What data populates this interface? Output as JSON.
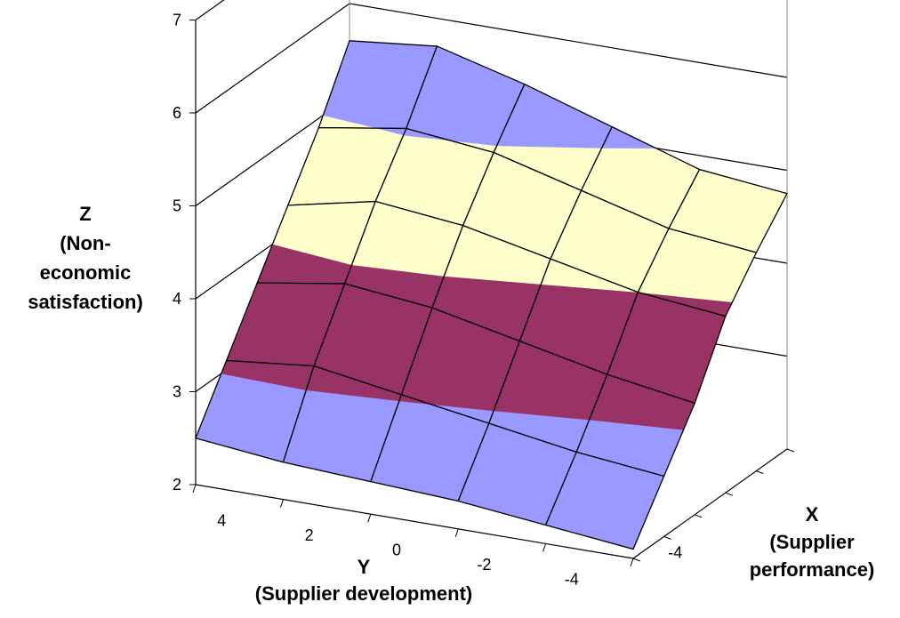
{
  "chart_data": {
    "type": "surface",
    "axes": {
      "z": {
        "title_lines": [
          "Z",
          "(Non-",
          "economic",
          "satisfaction)"
        ],
        "range": [
          2,
          7
        ],
        "ticks": [
          "2",
          "3",
          "4",
          "5",
          "6",
          "7"
        ]
      },
      "y": {
        "title_lines": [
          "Y",
          "(Supplier development)"
        ],
        "ticks": [
          "4",
          "2",
          "0",
          "-2",
          "-4"
        ]
      },
      "x": {
        "title_lines": [
          "X",
          "(Supplier",
          "performance)"
        ],
        "ticks": [
          "-4"
        ]
      }
    },
    "y_values": [
      5,
      3,
      1,
      -1,
      -3,
      -5
    ],
    "x_values": [
      -5,
      -3,
      -1,
      1,
      3,
      5
    ],
    "z_values": [
      [
        2.5,
        3.1,
        3.7,
        4.3,
        4.9,
        5.6
      ],
      [
        2.4,
        3.2,
        3.85,
        4.5,
        5.05,
        5.7
      ],
      [
        2.35,
        3.05,
        3.75,
        4.4,
        4.95,
        5.45
      ],
      [
        2.3,
        2.9,
        3.55,
        4.2,
        4.7,
        5.15
      ],
      [
        2.2,
        2.75,
        3.35,
        4.0,
        4.45,
        4.85
      ],
      [
        2.1,
        2.65,
        3.2,
        3.9,
        4.35,
        4.75
      ]
    ],
    "bands": [
      {
        "from": 2,
        "to": 3,
        "color": "#9999ff"
      },
      {
        "from": 3,
        "to": 4,
        "color": "#993366"
      },
      {
        "from": 4,
        "to": 5,
        "color": "#ffffcc"
      },
      {
        "from": 5,
        "to": 7,
        "color": "#9999ff"
      }
    ],
    "grid": true
  }
}
